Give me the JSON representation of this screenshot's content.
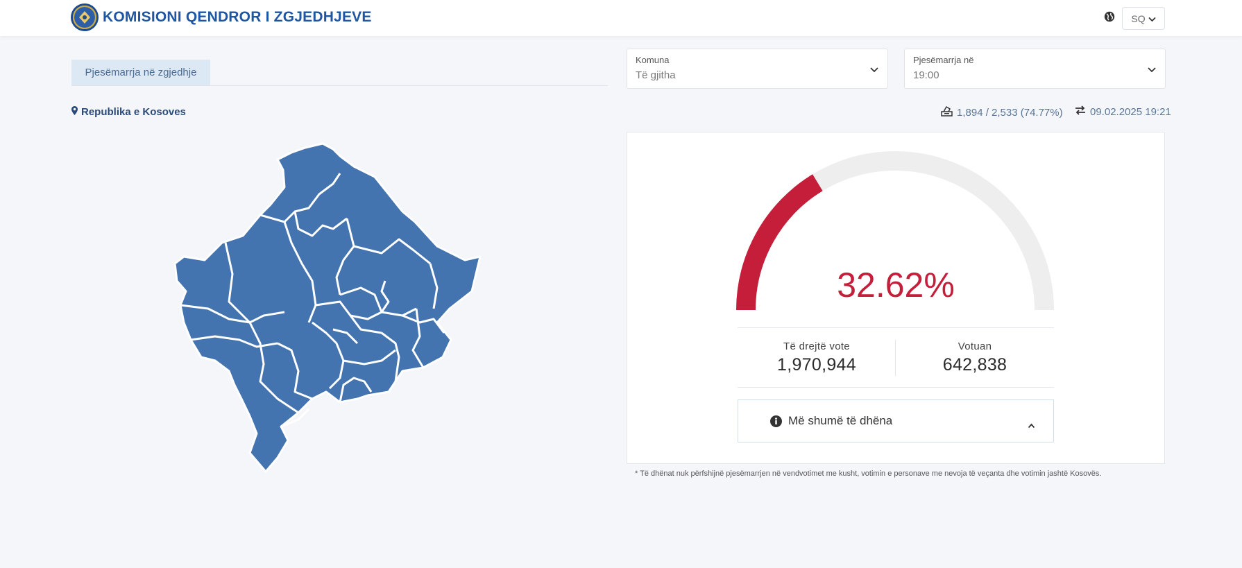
{
  "header": {
    "title": "KOMISIONI QENDROR I ZGJEDHJEVE",
    "language": "SQ"
  },
  "tabs": [
    {
      "label": "Pjesëmarrja në zgjedhje",
      "active": true
    }
  ],
  "filters": {
    "municipality": {
      "label": "Komuna",
      "value": "Të gjitha"
    },
    "turnout_at": {
      "label": "Pjesëmarrja në",
      "value": "19:00"
    }
  },
  "location": {
    "label": "Republika e Kosoves"
  },
  "stats": {
    "stations": "1,894 / 2,533 (74.77%)",
    "updated": "09.02.2025 19:21"
  },
  "gauge": {
    "percent_text": "32.62%",
    "percent_value": 32.62,
    "color_fill": "#c41e3a",
    "color_track": "#eeeeee"
  },
  "totals": {
    "eligible_label": "Të drejtë vote",
    "eligible_value": "1,970,944",
    "voted_label": "Votuan",
    "voted_value": "642,838"
  },
  "more_button": {
    "label": "Më shumë të dhëna"
  },
  "footnote": "* Të dhënat nuk përfshijnë pjesëmarrjen në vendvotimet me kusht, votimin e personave me nevoja të veçanta dhe votimin jashtë Kosovës.",
  "map": {
    "fill_color": "#4474b0",
    "border_color": "#ffffff"
  }
}
